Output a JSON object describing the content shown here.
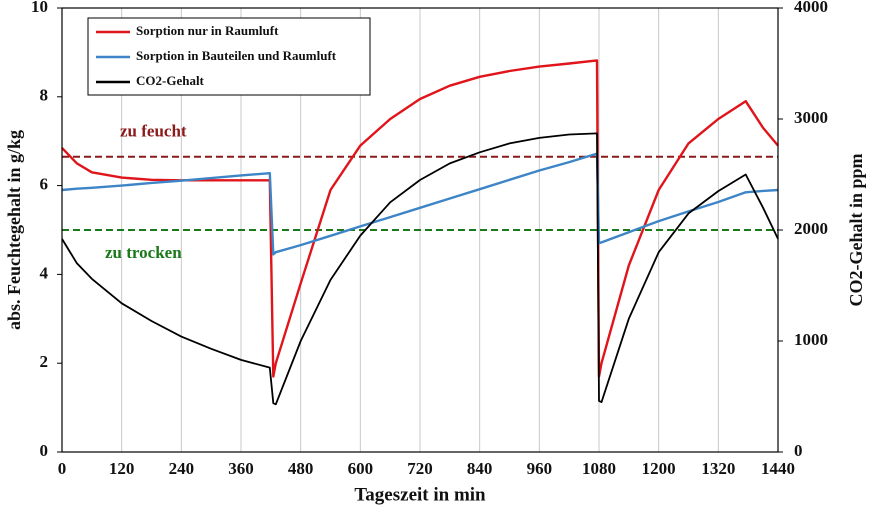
{
  "chart_data": {
    "type": "line",
    "xlabel": "Tageszeit in min",
    "ylabel": "abs. Feuchtegehalt in g/kg",
    "y2label": "CO2-Gehalt in ppm",
    "x": [
      0,
      30,
      60,
      120,
      180,
      240,
      300,
      360,
      418,
      425,
      430,
      480,
      540,
      600,
      660,
      720,
      780,
      840,
      900,
      960,
      1020,
      1076,
      1080,
      1085,
      1140,
      1200,
      1260,
      1320,
      1375,
      1410,
      1440
    ],
    "series": [
      {
        "name": "Sorption nur in Raumluft",
        "color": "#e0151b",
        "values": [
          6.85,
          6.5,
          6.3,
          6.18,
          6.13,
          6.12,
          6.12,
          6.12,
          6.12,
          1.7,
          2.0,
          3.8,
          5.9,
          6.9,
          7.5,
          7.95,
          8.25,
          8.45,
          8.58,
          8.68,
          8.75,
          8.82,
          1.7,
          2.0,
          4.2,
          5.9,
          6.95,
          7.5,
          7.9,
          7.3,
          6.9
        ]
      },
      {
        "name": "Sorption in Bauteilen und Raumluft",
        "color": "#3d85c6",
        "values": [
          5.9,
          5.93,
          5.95,
          6.0,
          6.06,
          6.11,
          6.17,
          6.23,
          6.28,
          4.45,
          4.5,
          4.66,
          4.87,
          5.08,
          5.29,
          5.5,
          5.71,
          5.92,
          6.13,
          6.34,
          6.53,
          6.72,
          4.7,
          4.72,
          4.95,
          5.2,
          5.42,
          5.63,
          5.85,
          5.88,
          5.9
        ]
      },
      {
        "name": "CO2-Gehalt",
        "color": "#000000",
        "axis": "y2",
        "values": [
          1920,
          1700,
          1560,
          1340,
          1180,
          1040,
          930,
          830,
          760,
          440,
          430,
          1000,
          1550,
          1950,
          2250,
          2450,
          2600,
          2700,
          2780,
          2830,
          2860,
          2870,
          460,
          450,
          1200,
          1800,
          2150,
          2350,
          2500,
          2200,
          1920
        ]
      }
    ],
    "reference_lines": [
      {
        "value": 6.65,
        "label": "zu feucht",
        "color": "#8b1a1a"
      },
      {
        "value": 5.0,
        "label": "zu trocken",
        "color": "#1a7a1a"
      }
    ],
    "xlim": [
      0,
      1440
    ],
    "xticks": [
      0,
      120,
      240,
      360,
      480,
      600,
      720,
      840,
      960,
      1080,
      1200,
      1320,
      1440
    ],
    "ylim": [
      0,
      10
    ],
    "yticks": [
      0,
      2,
      4,
      6,
      8,
      10
    ],
    "y2lim": [
      0,
      4000
    ],
    "y2ticks": [
      0,
      1000,
      2000,
      3000,
      4000
    ],
    "grid": true,
    "legend": "upper left"
  }
}
